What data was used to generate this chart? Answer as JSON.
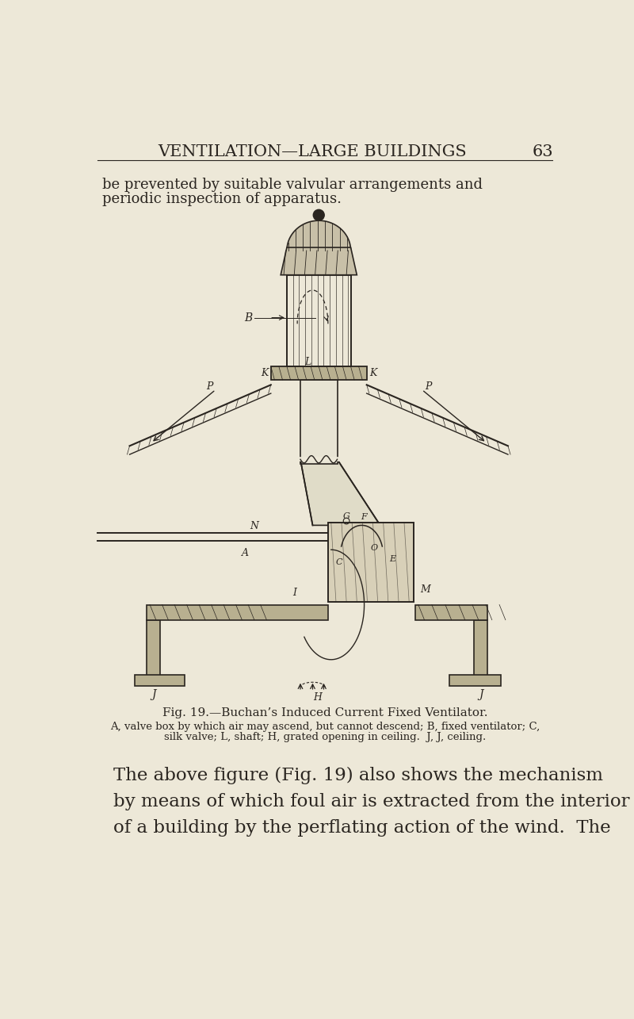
{
  "bg_color": "#ede8d8",
  "page_color": "#ede8d8",
  "header_text": "VENTILATION—LARGE BUILDINGS",
  "header_page": "63",
  "header_fontsize": 15,
  "intro_line1": "be prevented by suitable valvular arrangements and",
  "intro_line2": "periodic inspection of apparatus.",
  "intro_fontsize": 13,
  "fig_caption": "Fig. 19.—Buchan’s Induced Current Fixed Ventilator.",
  "fig_caption_fontsize": 11,
  "legend_line1": "A, valve box by which air may ascend, but cannot descend; B, fixed ventilator; C,",
  "legend_line2": "silk valve; L, shaft; H, grated opening in ceiling.  J, J, ceiling.",
  "legend_fontsize": 9.5,
  "body_lines": [
    "The above figure (Fig. 19) also shows the mechanism",
    "by means of which foul air is extracted from the interior",
    "of a building by the perflating action of the wind.  The"
  ],
  "body_fontsize": 16.5,
  "line_color": "#2a2520",
  "hatch_color": "#888070",
  "fill_color": "#b8b090",
  "fill_color2": "#c8c0a8",
  "fill_color3": "#d8d0b8"
}
